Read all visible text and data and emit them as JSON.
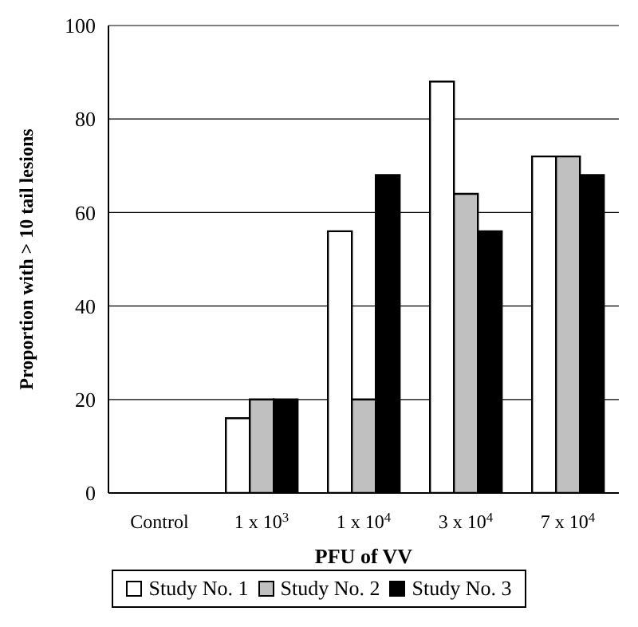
{
  "chart_data": {
    "type": "bar",
    "xlabel": "PFU of VV",
    "ylabel": "Proportion with > 10 tail lesions",
    "categories": [
      "Control",
      "1 x 10$^{3}$",
      "1 x 10$^{4}$",
      "3 x 10$^{4}$",
      "7 x 10$^{4}$"
    ],
    "series": [
      {
        "name": "Study No. 1",
        "color": "#ffffff",
        "values": [
          0,
          16,
          56,
          88,
          72
        ]
      },
      {
        "name": "Study No. 2",
        "color": "#c0c0c0",
        "values": [
          0,
          20,
          20,
          64,
          72
        ]
      },
      {
        "name": "Study No. 3",
        "color": "#000000",
        "values": [
          0,
          20,
          68,
          56,
          68
        ]
      }
    ],
    "ylim": [
      0,
      100
    ],
    "yticks": [
      0,
      20,
      40,
      60,
      80,
      100
    ],
    "grid": "y",
    "legend": "bottom"
  }
}
